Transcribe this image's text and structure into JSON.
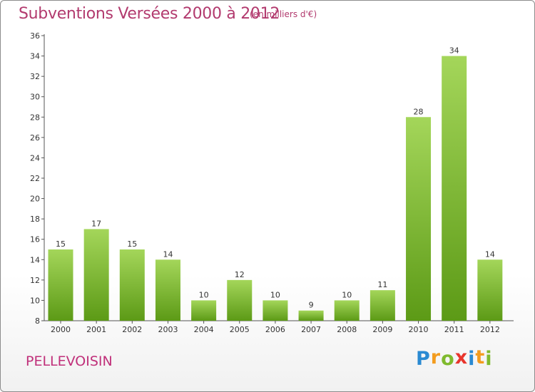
{
  "title": "Subventions Versées 2000 à 2012",
  "subtitle": "(en milliers d'€)",
  "commune": "PELLEVOISIN",
  "logo": {
    "letters": [
      "P",
      "r",
      "o",
      "x",
      "i",
      "t",
      "i"
    ],
    "colors": [
      "#2a8ad2",
      "#f39c1e",
      "#7fba2e",
      "#e8352c",
      "#2a8ad2",
      "#f39c1e",
      "#7fba2e"
    ]
  },
  "colors": {
    "bar_top": "#a4d65a",
    "bar_bottom": "#5c9a16",
    "title": "#b23a6e"
  },
  "chart_data": {
    "type": "bar",
    "categories": [
      "2000",
      "2001",
      "2002",
      "2003",
      "2004",
      "2005",
      "2006",
      "2007",
      "2008",
      "2009",
      "2010",
      "2011",
      "2012"
    ],
    "values": [
      15,
      17,
      15,
      14,
      10,
      12,
      10,
      9,
      10,
      11,
      28,
      34,
      14
    ],
    "title": "Subventions Versées 2000 à 2012",
    "subtitle": "(en milliers d'€)",
    "ylim": [
      8,
      36
    ],
    "yticks": [
      8,
      10,
      12,
      14,
      16,
      18,
      20,
      22,
      24,
      26,
      28,
      30,
      32,
      34,
      36
    ],
    "grid": false,
    "data_labels": true
  }
}
